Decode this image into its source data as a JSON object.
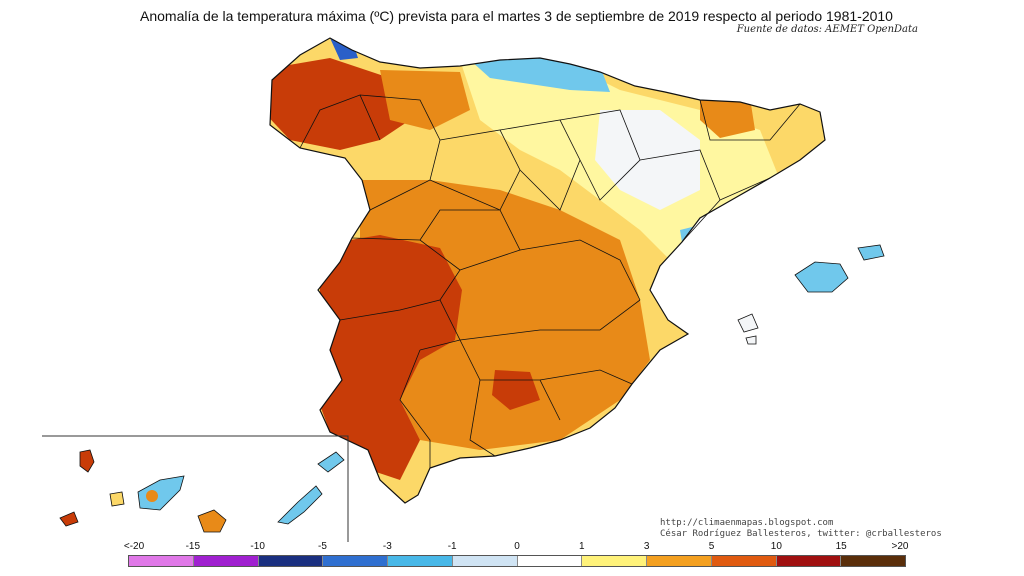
{
  "header": {
    "title": "Anomalía de la temperatura máxima (ºC) prevista para el martes 3 de septiembre de 2019 respecto al periodo 1981-2010",
    "source": "Fuente de datos: AEMET OpenData"
  },
  "credits": {
    "url": "http://climaenmapas.blogspot.com",
    "author": "César Rodríguez Ballesteros, twitter: @crballesteros"
  },
  "legend": {
    "ticks": [
      "<-20",
      "-15",
      "-10",
      "-5",
      "-3",
      "-1",
      "0",
      "1",
      "3",
      "5",
      "10",
      "15",
      ">20"
    ],
    "colors": [
      "#e078e8",
      "#a020d0",
      "#1a2f80",
      "#2f6fd0",
      "#48b8e8",
      "#d0e4f4",
      "#ffffff",
      "#fff27a",
      "#f4a020",
      "#e05a10",
      "#a01010",
      "#5a2e0a"
    ]
  },
  "map": {
    "region_colors": {
      "strong": "#c83c08",
      "warm": "#e88a18",
      "mild": "#fcd868",
      "light": "#fff7a0",
      "neutral": "#f4f6f8",
      "cool": "#70c8ec",
      "cold": "#2a5fc8"
    }
  }
}
